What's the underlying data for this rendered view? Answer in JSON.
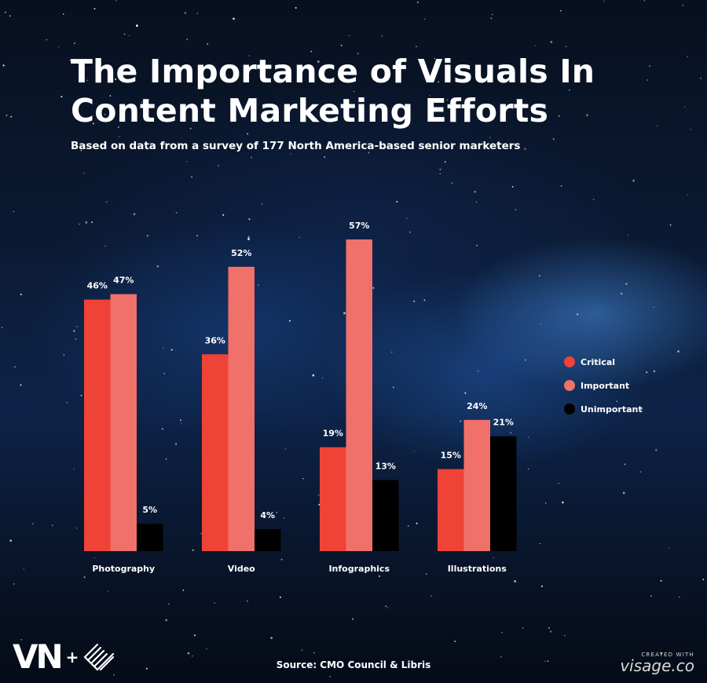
{
  "title": "The Importance of Visuals In Content Marketing Efforts",
  "subtitle": "Based on data from a survey of 177 North America-based senior marketers",
  "source": "Source: CMO Council & Libris",
  "brand": {
    "logo_text": "VN",
    "plus": "+"
  },
  "credit": {
    "small": "CREATED WITH",
    "big": "visage.co"
  },
  "colors": {
    "critical": "#ef4338",
    "important": "#f0706a",
    "unimportant": "#000000"
  },
  "chart_data": {
    "type": "bar",
    "title": "The Importance of Visuals In Content Marketing Efforts",
    "categories": [
      "Photography",
      "Video",
      "Infographics",
      "Illustrations"
    ],
    "series": [
      {
        "name": "Critical",
        "values": [
          46,
          36,
          19,
          15
        ],
        "labels": [
          "46%",
          "36%",
          "19%",
          "15%"
        ]
      },
      {
        "name": "Important",
        "values": [
          47,
          52,
          57,
          24
        ],
        "labels": [
          "47%",
          "52%",
          "57%",
          "24%"
        ]
      },
      {
        "name": "Unimportant",
        "values": [
          5,
          4,
          13,
          21
        ],
        "labels": [
          "5%",
          "4%",
          "13%",
          "21%"
        ]
      }
    ],
    "ylim": [
      0,
      57
    ],
    "grid": false,
    "legend": "right"
  }
}
